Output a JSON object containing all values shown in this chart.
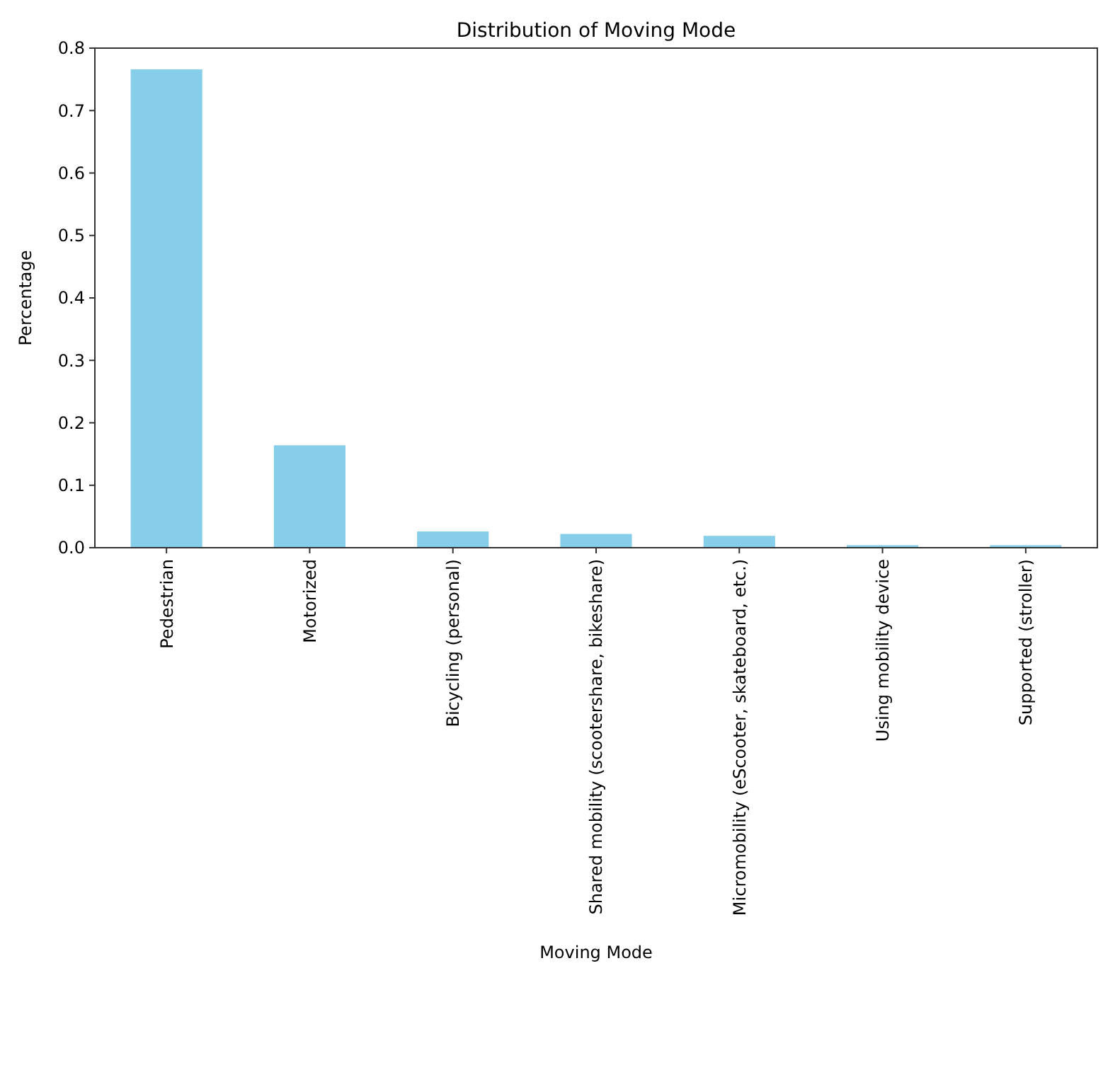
{
  "chart_data": {
    "type": "bar",
    "title": "Distribution of Moving Mode",
    "xlabel": "Moving Mode",
    "ylabel": "Percentage",
    "categories": [
      "Pedestrian",
      "Motorized",
      "Bicycling (personal)",
      "Shared mobility (scootershare, bikeshare)",
      "Micromobility (eScooter, skateboard, etc.)",
      "Using mobility device",
      "Supported (stroller)"
    ],
    "values": [
      0.766,
      0.164,
      0.026,
      0.022,
      0.019,
      0.004,
      0.004
    ],
    "color": "#87ceeb",
    "ylim": [
      0,
      0.8
    ],
    "yticks": [
      {
        "value": 0,
        "label": "0.0"
      },
      {
        "value": 0.1,
        "label": "0.1"
      },
      {
        "value": 0.2,
        "label": "0.2"
      },
      {
        "value": 0.3,
        "label": "0.3"
      },
      {
        "value": 0.4,
        "label": "0.4"
      },
      {
        "value": 0.5,
        "label": "0.5"
      },
      {
        "value": 0.6,
        "label": "0.6"
      },
      {
        "value": 0.7,
        "label": "0.7"
      },
      {
        "value": 0.8,
        "label": "0.8"
      }
    ],
    "grid": false
  }
}
